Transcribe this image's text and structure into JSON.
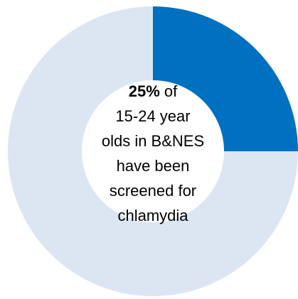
{
  "chart_data": {
    "type": "pie",
    "donut": true,
    "categories": [
      null,
      null
    ],
    "values": [
      25,
      75
    ],
    "value_labels": [
      "25%",
      null
    ],
    "colors": [
      "#0070c0",
      "#dce6f2"
    ],
    "annotation_lines": [
      "of",
      "15-24 year",
      "olds in B&NES",
      "have been",
      "screened for",
      "chlamydia"
    ]
  }
}
